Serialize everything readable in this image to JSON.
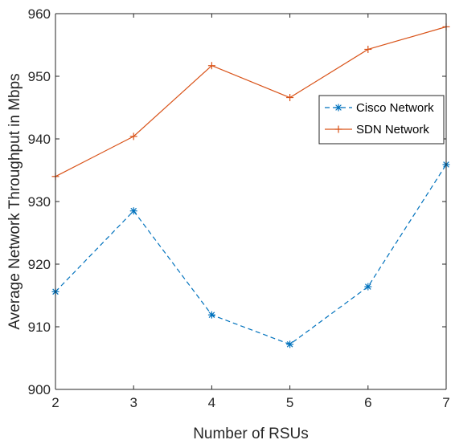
{
  "chart_data": {
    "type": "line",
    "xlabel": "Number of RSUs",
    "ylabel": "Average Network Throughput in Mbps",
    "x": [
      2,
      3,
      4,
      5,
      6,
      7
    ],
    "xlim": [
      2,
      7
    ],
    "ylim": [
      900,
      960
    ],
    "xticks": [
      "2",
      "3",
      "4",
      "5",
      "6",
      "7"
    ],
    "yticks": [
      "900",
      "910",
      "920",
      "930",
      "940",
      "950",
      "960"
    ],
    "grid": false,
    "legend_position": "right",
    "series": [
      {
        "name": "Cisco Network",
        "values": [
          915.6,
          928.5,
          911.9,
          907.2,
          916.4,
          935.9
        ],
        "color": "#0072BD",
        "line_style": "dashed",
        "marker": "asterisk"
      },
      {
        "name": "SDN Network",
        "values": [
          934.0,
          940.4,
          951.7,
          946.6,
          954.3,
          957.9
        ],
        "color": "#D95319",
        "line_style": "solid",
        "marker": "plus"
      }
    ]
  }
}
